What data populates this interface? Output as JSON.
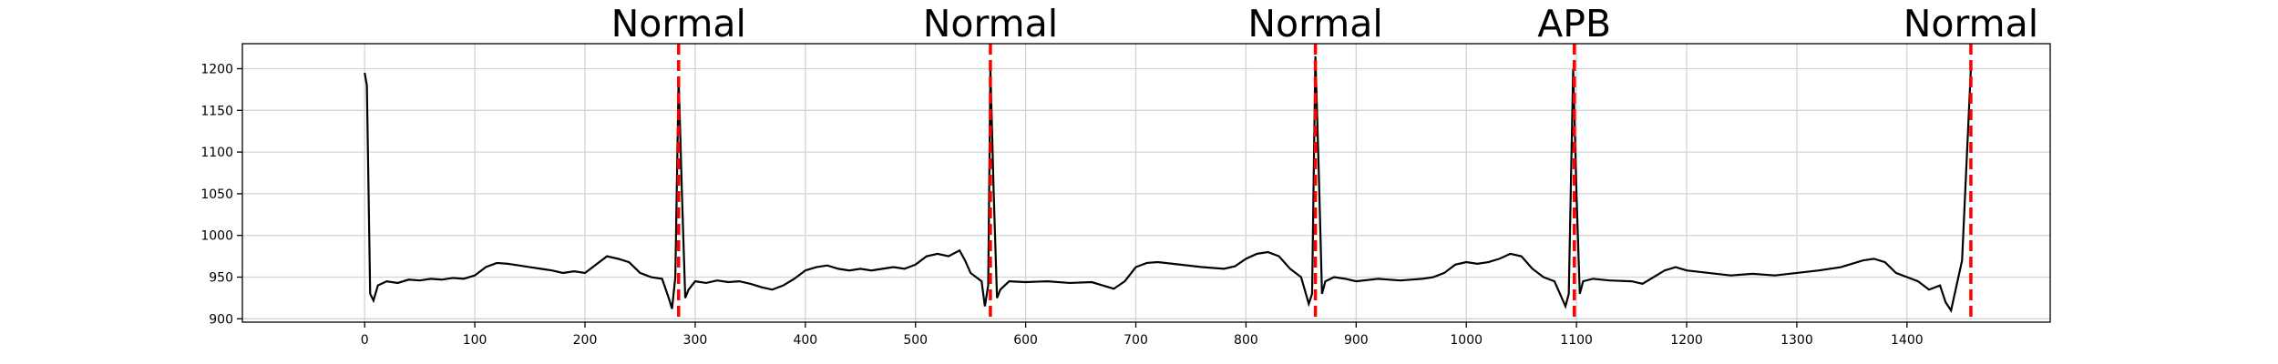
{
  "chart_data": {
    "type": "line",
    "x": [
      0,
      2,
      5,
      8,
      12,
      20,
      30,
      40,
      50,
      60,
      70,
      80,
      90,
      100,
      110,
      120,
      130,
      140,
      150,
      160,
      170,
      180,
      190,
      200,
      210,
      220,
      230,
      240,
      250,
      260,
      270,
      276,
      279,
      282,
      285,
      288,
      291,
      294,
      300,
      310,
      320,
      330,
      340,
      350,
      360,
      370,
      380,
      390,
      400,
      410,
      420,
      430,
      440,
      450,
      460,
      470,
      480,
      490,
      500,
      510,
      520,
      530,
      540,
      545,
      550,
      560,
      563,
      566,
      568,
      571,
      574,
      577,
      585,
      600,
      620,
      640,
      660,
      670,
      680,
      690,
      700,
      710,
      720,
      740,
      760,
      780,
      790,
      800,
      810,
      820,
      830,
      840,
      850,
      857,
      860,
      863,
      866,
      869,
      872,
      880,
      890,
      900,
      920,
      940,
      960,
      970,
      980,
      990,
      1000,
      1010,
      1020,
      1030,
      1040,
      1050,
      1060,
      1070,
      1080,
      1090,
      1093,
      1097,
      1100,
      1103,
      1106,
      1115,
      1130,
      1150,
      1160,
      1170,
      1180,
      1190,
      1200,
      1220,
      1240,
      1260,
      1280,
      1300,
      1320,
      1340,
      1360,
      1370,
      1380,
      1390,
      1400,
      1410,
      1420,
      1430,
      1435,
      1440,
      1445,
      1450,
      1458
    ],
    "series": [
      {
        "color": "#000000",
        "values": [
          1195,
          1180,
          930,
          922,
          940,
          945,
          943,
          947,
          946,
          948,
          947,
          949,
          948,
          952,
          962,
          967,
          966,
          964,
          962,
          960,
          958,
          955,
          957,
          955,
          965,
          975,
          972,
          968,
          955,
          950,
          948,
          925,
          912,
          950,
          1190,
          1050,
          925,
          935,
          945,
          943,
          946,
          944,
          945,
          942,
          938,
          935,
          940,
          948,
          958,
          962,
          964,
          960,
          958,
          960,
          958,
          960,
          962,
          960,
          965,
          975,
          978,
          975,
          982,
          970,
          955,
          945,
          915,
          940,
          1200,
          1050,
          925,
          935,
          945,
          944,
          945,
          943,
          944,
          940,
          936,
          945,
          962,
          967,
          968,
          965,
          962,
          960,
          963,
          972,
          978,
          980,
          975,
          960,
          950,
          918,
          930,
          1215,
          1080,
          930,
          945,
          950,
          948,
          945,
          948,
          946,
          948,
          950,
          955,
          965,
          968,
          966,
          968,
          972,
          978,
          975,
          960,
          950,
          945,
          915,
          930,
          1200,
          1050,
          930,
          945,
          948,
          946,
          945,
          942,
          950,
          958,
          962,
          958,
          955,
          952,
          954,
          952,
          955,
          958,
          962,
          970,
          972,
          968,
          955,
          950,
          945,
          935,
          940,
          920,
          910,
          940,
          970,
          1200
        ]
      }
    ],
    "annotations": [
      {
        "x": 285,
        "label": "Normal",
        "color": "#ff0000"
      },
      {
        "x": 568,
        "label": "Normal",
        "color": "#ff0000"
      },
      {
        "x": 863,
        "label": "Normal",
        "color": "#ff0000"
      },
      {
        "x": 1098,
        "label": "APB",
        "color": "#ff0000"
      },
      {
        "x": 1458,
        "label": "Normal",
        "color": "#ff0000"
      }
    ],
    "xlim": [
      -111,
      1530
    ],
    "ylim": [
      896,
      1230
    ],
    "xticks": [
      0,
      100,
      200,
      300,
      400,
      500,
      600,
      700,
      800,
      900,
      1000,
      1100,
      1200,
      1300,
      1400
    ],
    "yticks": [
      900,
      950,
      1000,
      1050,
      1100,
      1150,
      1200
    ],
    "grid": true
  }
}
